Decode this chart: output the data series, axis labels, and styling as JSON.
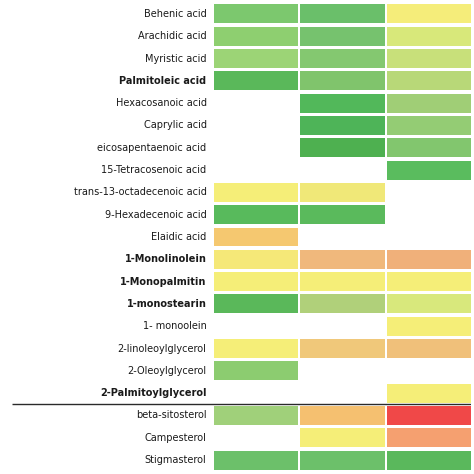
{
  "rows": [
    "Behenic acid",
    "Arachidic acid",
    "Myristic acid",
    "Palmitoleic acid",
    "Hexacosanoic acid",
    "Caprylic acid",
    "eicosapentaenoic acid",
    "15-Tetracosenoic acid",
    "trans-13-octadecenoic acid",
    "9-Hexadecenoic acid",
    "Elaidic acid",
    "1-Monolinolein",
    "1-Monopalmitin",
    "1-monostearin",
    "1- monoolein",
    "2-linoleoylglycerol",
    "2-Oleoylglycerol",
    "2-Palmitoylglycerol",
    "beta-sitosterol",
    "Campesterol",
    "Stigmasterol"
  ],
  "bold_rows": [
    3,
    11,
    12,
    13,
    17
  ],
  "separator_after_row": 17,
  "bg_color": "#ffffff",
  "label_fontsize": 7.0,
  "cell_data": [
    {
      "cols": [
        0,
        1,
        2
      ],
      "colors": [
        "#7cc86e",
        "#6abf6a",
        "#f5ed7a"
      ]
    },
    {
      "cols": [
        0,
        1,
        2
      ],
      "colors": [
        "#8ecf70",
        "#76c26e",
        "#d8e87a"
      ]
    },
    {
      "cols": [
        0,
        1,
        2
      ],
      "colors": [
        "#9cd476",
        "#84c870",
        "#c8e07a"
      ]
    },
    {
      "cols": [
        0,
        1,
        2
      ],
      "colors": [
        "#5ab85a",
        "#80c46c",
        "#b8d878"
      ]
    },
    {
      "cols": [
        1,
        2
      ],
      "colors": [
        "#52b85a",
        "#a0ce76"
      ]
    },
    {
      "cols": [
        1,
        2
      ],
      "colors": [
        "#4eb458",
        "#94cc74"
      ]
    },
    {
      "cols": [
        1,
        2
      ],
      "colors": [
        "#4eb050",
        "#82c66e"
      ]
    },
    {
      "cols": [
        2
      ],
      "colors": [
        "#5abc5e"
      ]
    },
    {
      "cols": [
        0,
        1
      ],
      "colors": [
        "#f5ee78",
        "#f0e878"
      ]
    },
    {
      "cols": [
        0,
        1
      ],
      "colors": [
        "#58ba5c",
        "#5aba5c"
      ]
    },
    {
      "cols": [
        0
      ],
      "colors": [
        "#f5c870"
      ]
    },
    {
      "cols": [
        0,
        1,
        2
      ],
      "colors": [
        "#f5e878",
        "#f0b87c",
        "#f0b07a"
      ]
    },
    {
      "cols": [
        0,
        1,
        2
      ],
      "colors": [
        "#f5ee78",
        "#f5ee78",
        "#f5ee78"
      ]
    },
    {
      "cols": [
        0,
        1,
        2
      ],
      "colors": [
        "#5ab85a",
        "#b0d07a",
        "#d8e87c"
      ]
    },
    {
      "cols": [
        2
      ],
      "colors": [
        "#f5ee78"
      ]
    },
    {
      "cols": [
        0,
        1,
        2
      ],
      "colors": [
        "#f5ee78",
        "#f0c87a",
        "#f0c07a"
      ]
    },
    {
      "cols": [
        0
      ],
      "colors": [
        "#8ccc70"
      ]
    },
    {
      "cols": [
        2
      ],
      "colors": [
        "#f5ee78"
      ]
    },
    {
      "cols": [
        0,
        1,
        2
      ],
      "colors": [
        "#a0d07a",
        "#f5c070",
        "#f04848"
      ]
    },
    {
      "cols": [
        1,
        2
      ],
      "colors": [
        "#f5ee78",
        "#f5a070"
      ]
    },
    {
      "cols": [
        0,
        1,
        2
      ],
      "colors": [
        "#6cc06a",
        "#6cc06a",
        "#5ab85c"
      ]
    }
  ]
}
